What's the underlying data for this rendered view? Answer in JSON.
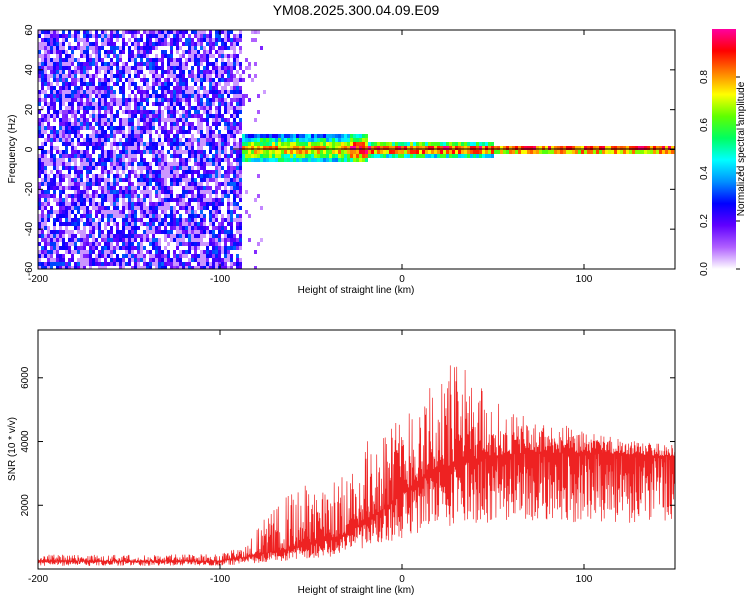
{
  "title": "YM08.2025.300.04.09.E09",
  "chart_data": [
    {
      "type": "heatmap",
      "name": "spectrogram",
      "xlabel": "Height of straight line (km)",
      "ylabel": "Frequency (Hz)",
      "xlim": [
        -200,
        150
      ],
      "ylim": [
        -60,
        60
      ],
      "xticks": [
        -200,
        -100,
        0,
        100
      ],
      "yticks": [
        60,
        40,
        20,
        0,
        -20,
        -40,
        -60
      ],
      "ytick_labels": [
        "60",
        "40",
        "20",
        "0",
        "-20",
        "-40",
        "-60"
      ],
      "description_regions": [
        {
          "x_from": -200,
          "x_to": -88,
          "level": "noise",
          "amplitude": [
            0.15,
            0.35
          ]
        },
        {
          "x_from": -88,
          "x_to": 150,
          "level": "signal near 0 Hz",
          "amplitude": [
            0.3,
            1.0
          ]
        }
      ],
      "colorbar": {
        "label": "Normalized spectral amplitude",
        "range": [
          0.0,
          1.0
        ],
        "ticks": [
          0.0,
          0.2,
          0.4,
          0.6,
          0.8
        ],
        "tick_labels": [
          "0.0",
          "0.2",
          "0.4",
          "0.6",
          "0.8"
        ],
        "colors": [
          "#ffffff",
          "#b060ff",
          "#6000ff",
          "#0000ff",
          "#0090ff",
          "#00ffff",
          "#00ff60",
          "#60ff00",
          "#ffff00",
          "#ff8000",
          "#ff0000",
          "#ff00a0"
        ]
      }
    },
    {
      "type": "line",
      "name": "snr",
      "xlabel": "Height of straight line (km)",
      "ylabel": "SNR (10 * v/v)",
      "xlim": [
        -200,
        150
      ],
      "ylim": [
        0,
        7500
      ],
      "xticks": [
        -200,
        -100,
        0,
        100
      ],
      "yticks": [
        2000,
        4000,
        6000
      ],
      "color": "#ee2222",
      "envelope": {
        "x": [
          -200,
          -150,
          -100,
          -88,
          -80,
          -70,
          -60,
          -50,
          -40,
          -30,
          -20,
          -10,
          0,
          10,
          20,
          30,
          40,
          50,
          60,
          70,
          80,
          90,
          100,
          110,
          120,
          130,
          140,
          150
        ],
        "base": [
          250,
          250,
          250,
          350,
          450,
          550,
          650,
          800,
          950,
          1100,
          1500,
          1900,
          2400,
          2800,
          3100,
          3300,
          3450,
          3550,
          3600,
          3650,
          3650,
          3650,
          3650,
          3650,
          3600,
          3600,
          3550,
          3550
        ],
        "top": [
          450,
          450,
          480,
          700,
          1300,
          1900,
          2500,
          2700,
          2700,
          3000,
          4000,
          4500,
          5000,
          5500,
          6200,
          6600,
          6000,
          5300,
          5000,
          4700,
          4600,
          4500,
          4300,
          4200,
          4100,
          4000,
          3950,
          3900
        ]
      }
    }
  ]
}
